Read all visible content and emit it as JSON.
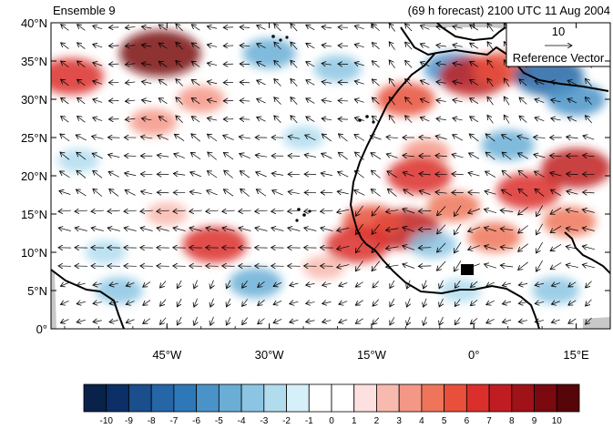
{
  "header": {
    "left_title": "Ensemble 9",
    "right_title": "(69 h forecast) 2100 UTC 11 Aug 2004"
  },
  "axes": {
    "lat_labels": [
      "40°N",
      "35°N",
      "30°N",
      "25°N",
      "20°N",
      "15°N",
      "10°N",
      "5°N",
      "0°"
    ],
    "lon_labels": [
      "45°W",
      "30°W",
      "15°W",
      "0°",
      "15°E"
    ]
  },
  "reference_vector": {
    "value": "10",
    "label": "Reference Vector"
  },
  "colorbar": {
    "labels": [
      "-10",
      "-9",
      "-8",
      "-7",
      "-6",
      "-5",
      "-4",
      "-3",
      "-2",
      "-1",
      "0",
      "1",
      "2",
      "3",
      "4",
      "5",
      "6",
      "7",
      "8",
      "9",
      "10"
    ],
    "colors": [
      "#08224a",
      "#0b2f66",
      "#1a4e8c",
      "#2466a6",
      "#2f78b8",
      "#4a93c8",
      "#6aaed6",
      "#8cc5e3",
      "#b0dcee",
      "#d6f0f9",
      "#ffffff",
      "#ffffff",
      "#fde0e0",
      "#f8b9ae",
      "#f49786",
      "#ee7559",
      "#e8503b",
      "#da2f2b",
      "#c01d22",
      "#9f1218",
      "#7a0a10",
      "#560509"
    ]
  },
  "map_data": {
    "extent": {
      "lon_min": -62,
      "lon_max": 20,
      "lat_min": 0,
      "lat_max": 40
    },
    "anomalies": [
      {
        "lon": -46,
        "lat": 36,
        "v": 9
      },
      {
        "lon": -59,
        "lat": 33,
        "v": 6
      },
      {
        "lon": -40,
        "lat": 30,
        "v": 3
      },
      {
        "lon": -47,
        "lat": 27,
        "v": 3
      },
      {
        "lon": -58,
        "lat": 22,
        "v": -2
      },
      {
        "lon": -38,
        "lat": 11,
        "v": 6
      },
      {
        "lon": -32,
        "lat": 6,
        "v": -4
      },
      {
        "lon": -45,
        "lat": 15,
        "v": 2
      },
      {
        "lon": -20,
        "lat": 34,
        "v": -3
      },
      {
        "lon": -30,
        "lat": 36,
        "v": -4
      },
      {
        "lon": -3,
        "lat": 34,
        "v": -5
      },
      {
        "lon": 0,
        "lat": 33,
        "v": 7
      },
      {
        "lon": 4,
        "lat": 34,
        "v": 5
      },
      {
        "lon": -10,
        "lat": 30,
        "v": 5
      },
      {
        "lon": -7,
        "lat": 23,
        "v": 3
      },
      {
        "lon": -8,
        "lat": 20,
        "v": 6
      },
      {
        "lon": -3,
        "lat": 16,
        "v": 4
      },
      {
        "lon": -10,
        "lat": 13,
        "v": 7
      },
      {
        "lon": -15,
        "lat": 14,
        "v": 5
      },
      {
        "lon": -17,
        "lat": 11,
        "v": 6
      },
      {
        "lon": -6,
        "lat": 11,
        "v": -3
      },
      {
        "lon": 3,
        "lat": 12,
        "v": 4
      },
      {
        "lon": 8,
        "lat": 18,
        "v": 6
      },
      {
        "lon": 15,
        "lat": 21,
        "v": 7
      },
      {
        "lon": 11,
        "lat": 33,
        "v": -7
      },
      {
        "lon": 15,
        "lat": 30,
        "v": -5
      },
      {
        "lon": 5,
        "lat": 24,
        "v": -4
      },
      {
        "lon": 14,
        "lat": 14,
        "v": 4
      },
      {
        "lon": -25,
        "lat": 25,
        "v": -2
      },
      {
        "lon": -54,
        "lat": 10,
        "v": -2
      },
      {
        "lon": -52,
        "lat": 5,
        "v": -3
      },
      {
        "lon": -22,
        "lat": 8,
        "v": 2
      },
      {
        "lon": -2,
        "lat": 5,
        "v": -2
      },
      {
        "lon": 12,
        "lat": 5,
        "v": -3
      }
    ]
  }
}
